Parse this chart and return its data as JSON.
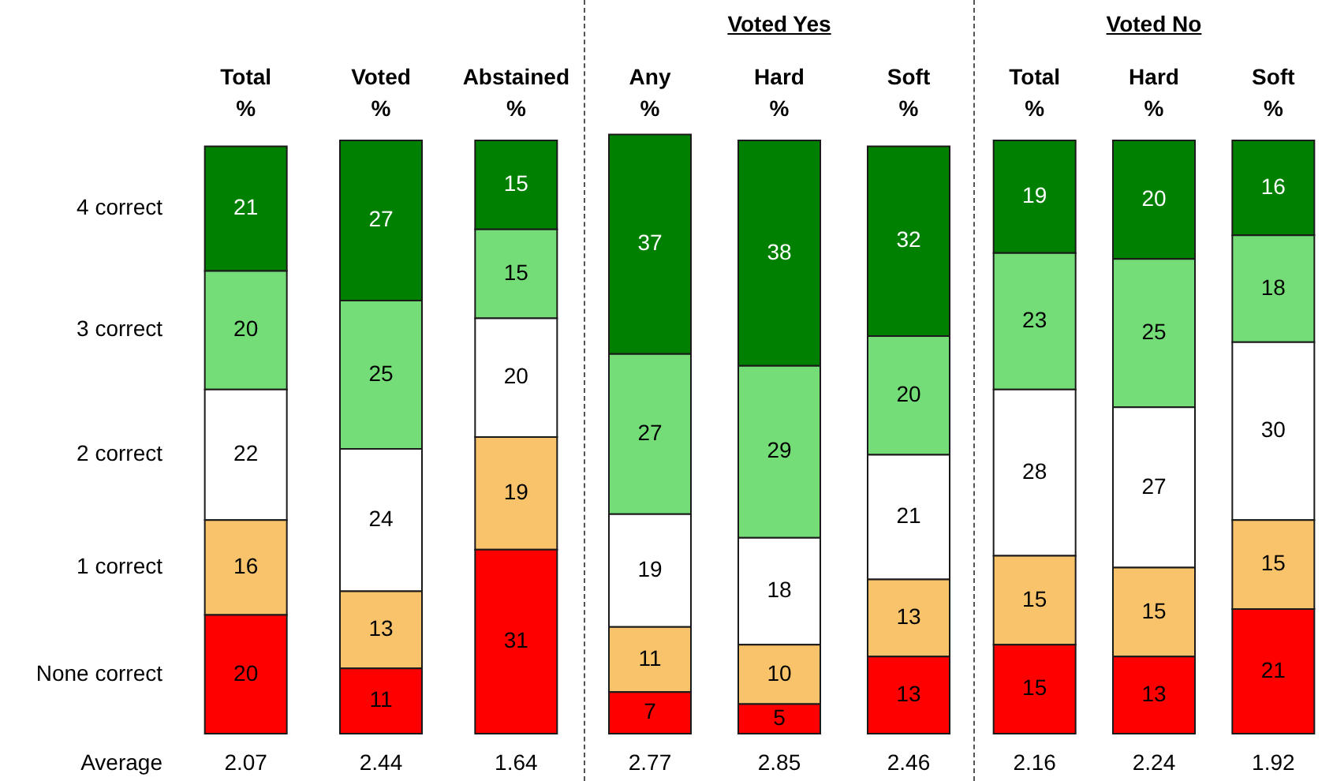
{
  "chart_data": [
    {
      "type": "bar",
      "categories": [
        "Total\n%",
        "Voted\n%",
        "Abstained\n%"
      ],
      "series": [
        {
          "name": "None correct",
          "color": "#ff0000",
          "values": [
            20,
            11,
            31
          ]
        },
        {
          "name": "1 correct",
          "color": "#f8c36b",
          "values": [
            16,
            13,
            19
          ]
        },
        {
          "name": "2 correct",
          "color": "#ffffff",
          "values": [
            22,
            24,
            20
          ]
        },
        {
          "name": "3 correct",
          "color": "#74dd78",
          "values": [
            20,
            25,
            15
          ]
        },
        {
          "name": "4 correct",
          "color": "#008000",
          "values": [
            21,
            27,
            15
          ]
        }
      ],
      "stacked": true,
      "data_labels": true,
      "tick_labels": "x",
      "annotations": [
        "Average",
        "2.07",
        "2.44",
        "1.64"
      ]
    },
    {
      "type": "bar",
      "title": "Voted Yes",
      "categories": [
        "Any\n%",
        "Hard\n%",
        "Soft\n%"
      ],
      "series": [
        {
          "color": "#ff0000",
          "values": [
            7,
            5,
            13
          ]
        },
        {
          "color": "#f8c36b",
          "values": [
            11,
            10,
            13
          ]
        },
        {
          "color": "#ffffff",
          "values": [
            19,
            18,
            21
          ]
        },
        {
          "color": "#74dd78",
          "values": [
            27,
            29,
            20
          ]
        },
        {
          "color": "#008000",
          "values": [
            37,
            38,
            32
          ]
        }
      ],
      "stacked": true,
      "data_labels": true,
      "tick_labels": "x",
      "annotations": [
        "2.77",
        "2.85",
        "2.46"
      ]
    },
    {
      "type": "bar",
      "title": "Voted No",
      "categories": [
        "Total\n%",
        "Hard\n%",
        "Soft\n%"
      ],
      "series": [
        {
          "color": "#ff0000",
          "values": [
            15,
            13,
            21
          ]
        },
        {
          "color": "#f8c36b",
          "values": [
            15,
            15,
            15
          ]
        },
        {
          "color": "#ffffff",
          "values": [
            28,
            27,
            30
          ]
        },
        {
          "color": "#74dd78",
          "values": [
            23,
            25,
            18
          ]
        },
        {
          "color": "#008000",
          "values": [
            19,
            20,
            16
          ]
        }
      ],
      "stacked": true,
      "data_labels": true,
      "tick_labels": "x",
      "annotations": [
        "2.16",
        "2.24",
        "1.92"
      ]
    }
  ]
}
